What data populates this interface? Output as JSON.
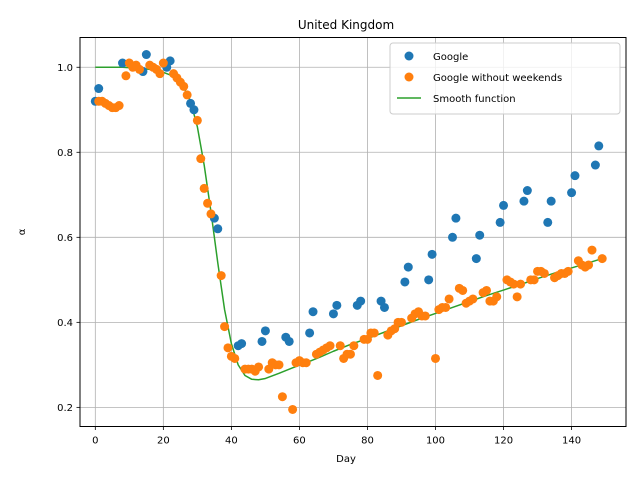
{
  "chart_data": {
    "type": "scatter",
    "title": "United Kingdom",
    "xlabel": "Day",
    "ylabel": "α",
    "xlim": [
      -4.5,
      156
    ],
    "ylim": [
      0.155,
      1.07
    ],
    "xticks": [
      0,
      20,
      40,
      60,
      80,
      100,
      120,
      140
    ],
    "yticks": [
      0.2,
      0.4,
      0.6,
      0.8,
      1.0
    ],
    "xtick_labels": [
      "0",
      "20",
      "40",
      "60",
      "80",
      "100",
      "120",
      "140"
    ],
    "ytick_labels": [
      "0.2",
      "0.4",
      "0.6",
      "0.8",
      "1.0"
    ],
    "grid": true,
    "legend_position": "top-right",
    "colors": {
      "google": "#1f77b4",
      "google_no_weekends": "#ff7f0e",
      "smooth": "#2ca02c"
    },
    "series": [
      {
        "name": "Google",
        "kind": "scatter",
        "x": [
          0,
          1,
          8,
          14,
          15,
          21,
          22,
          28,
          29,
          35,
          36,
          42,
          43,
          49,
          50,
          56,
          57,
          63,
          64,
          70,
          71,
          77,
          78,
          84,
          85,
          91,
          92,
          98,
          99,
          105,
          106,
          112,
          113,
          119,
          120,
          126,
          127,
          133,
          134,
          140,
          141,
          147,
          148
        ],
        "y": [
          0.92,
          0.95,
          1.01,
          0.99,
          1.03,
          1.0,
          1.015,
          0.915,
          0.9,
          0.645,
          0.62,
          0.345,
          0.35,
          0.355,
          0.38,
          0.365,
          0.355,
          0.375,
          0.425,
          0.42,
          0.44,
          0.44,
          0.45,
          0.45,
          0.435,
          0.495,
          0.53,
          0.5,
          0.56,
          0.6,
          0.645,
          0.55,
          0.605,
          0.635,
          0.675,
          0.685,
          0.71,
          0.635,
          0.685,
          0.705,
          0.745,
          0.77,
          0.815
        ]
      },
      {
        "name": "Google without weekends",
        "kind": "scatter",
        "x": [
          1,
          2,
          3,
          4,
          5,
          6,
          7,
          9,
          10,
          11,
          12,
          13,
          16,
          17,
          18,
          19,
          20,
          23,
          24,
          25,
          26,
          27,
          30,
          31,
          32,
          33,
          34,
          37,
          38,
          39,
          40,
          41,
          44,
          45,
          46,
          47,
          48,
          51,
          52,
          53,
          54,
          55,
          58,
          59,
          60,
          61,
          62,
          65,
          66,
          67,
          68,
          69,
          72,
          73,
          74,
          75,
          76,
          79,
          80,
          81,
          82,
          83,
          86,
          87,
          88,
          89,
          90,
          93,
          94,
          95,
          96,
          97,
          100,
          101,
          102,
          103,
          104,
          107,
          108,
          109,
          110,
          111,
          114,
          115,
          116,
          117,
          118,
          121,
          122,
          123,
          124,
          125,
          128,
          129,
          130,
          131,
          132,
          135,
          136,
          137,
          138,
          139,
          142,
          143,
          144,
          145,
          146,
          149
        ],
        "y": [
          0.92,
          0.92,
          0.915,
          0.91,
          0.905,
          0.905,
          0.91,
          0.98,
          1.01,
          1.0,
          1.005,
          0.995,
          1.005,
          1.0,
          0.995,
          0.985,
          1.01,
          0.985,
          0.975,
          0.965,
          0.955,
          0.935,
          0.875,
          0.785,
          0.715,
          0.68,
          0.655,
          0.51,
          0.39,
          0.34,
          0.32,
          0.315,
          0.29,
          0.29,
          0.29,
          0.285,
          0.295,
          0.29,
          0.305,
          0.3,
          0.3,
          0.225,
          0.195,
          0.305,
          0.31,
          0.305,
          0.305,
          0.325,
          0.33,
          0.335,
          0.34,
          0.345,
          0.345,
          0.315,
          0.325,
          0.325,
          0.345,
          0.36,
          0.36,
          0.375,
          0.375,
          0.275,
          0.37,
          0.38,
          0.385,
          0.4,
          0.4,
          0.41,
          0.42,
          0.425,
          0.415,
          0.415,
          0.315,
          0.43,
          0.435,
          0.435,
          0.455,
          0.48,
          0.475,
          0.445,
          0.45,
          0.455,
          0.47,
          0.475,
          0.45,
          0.45,
          0.46,
          0.5,
          0.495,
          0.49,
          0.46,
          0.49,
          0.5,
          0.5,
          0.52,
          0.52,
          0.515,
          0.505,
          0.51,
          0.515,
          0.515,
          0.52,
          0.545,
          0.535,
          0.53,
          0.535,
          0.57,
          0.55
        ]
      },
      {
        "name": "Smooth function",
        "kind": "line",
        "x": [
          0,
          4,
          8,
          12,
          14,
          16,
          18,
          20,
          22,
          24,
          26,
          28,
          30,
          32,
          34,
          36,
          38,
          40,
          42,
          44,
          46,
          48,
          50,
          54,
          58,
          62,
          66,
          70,
          75,
          80,
          85,
          90,
          95,
          100,
          105,
          110,
          115,
          120,
          125,
          130,
          135,
          140,
          145,
          149
        ],
        "y": [
          1.0,
          1.0,
          1.0,
          0.998,
          0.997,
          0.995,
          0.992,
          0.988,
          0.982,
          0.972,
          0.953,
          0.92,
          0.86,
          0.77,
          0.66,
          0.54,
          0.43,
          0.35,
          0.3,
          0.275,
          0.266,
          0.265,
          0.268,
          0.28,
          0.293,
          0.305,
          0.318,
          0.332,
          0.348,
          0.362,
          0.377,
          0.392,
          0.407,
          0.421,
          0.435,
          0.449,
          0.463,
          0.476,
          0.489,
          0.503,
          0.516,
          0.528,
          0.54,
          0.55
        ]
      }
    ]
  }
}
